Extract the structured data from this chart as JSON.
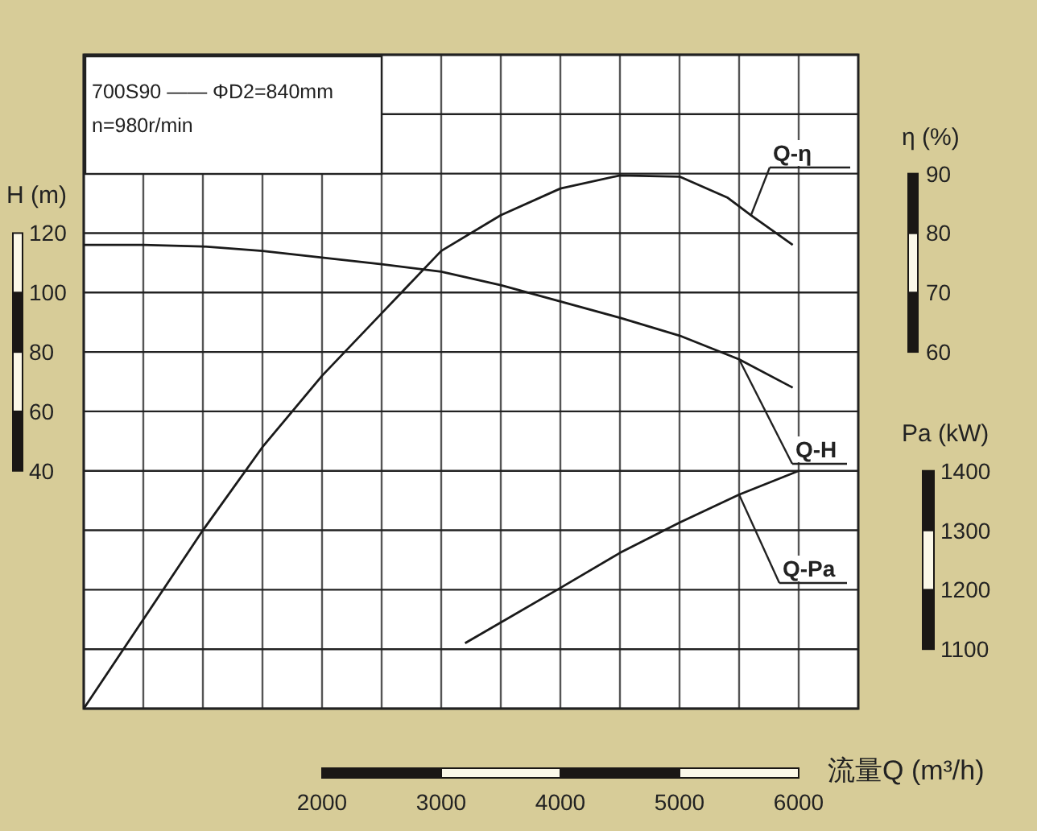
{
  "chart_data": {
    "type": "line",
    "annotations": [
      "700S90 —— ΦD2=840mm",
      "n=980r/min"
    ],
    "xlabel": "流量Q (m³/h)",
    "ylabel": "H (m)",
    "y2label": "η (%)",
    "y3label": "Pa (kW)",
    "xlim": [
      0,
      6500
    ],
    "xticks": [
      {
        "value": 0,
        "label": null
      },
      {
        "value": 500,
        "label": null
      },
      {
        "value": 1000,
        "label": null
      },
      {
        "value": 1500,
        "label": null
      },
      2000,
      {
        "value": 2500,
        "label": null
      },
      3000,
      {
        "value": 3500,
        "label": null
      },
      4000,
      {
        "value": 4500,
        "label": null
      },
      5000,
      {
        "value": 5500,
        "label": null
      },
      6000
    ],
    "ylim": [
      -40,
      180
    ],
    "yticks": [
      {
        "value": -40,
        "label": null
      },
      {
        "value": -20,
        "label": null
      },
      {
        "value": 0,
        "label": null
      },
      {
        "value": 20,
        "label": null
      },
      40,
      60,
      80,
      100,
      120,
      {
        "value": 140,
        "label": null
      },
      {
        "value": 160,
        "label": null
      },
      {
        "value": 180,
        "label": null
      }
    ],
    "y2lim": [
      0,
      110
    ],
    "y2ticks": [
      60,
      70,
      80,
      90
    ],
    "y3lim": [
      1000,
      2100
    ],
    "y3ticks": [
      1100,
      1200,
      1300,
      1400
    ],
    "grid": true,
    "line_style": "solid",
    "series": [
      {
        "name": "Q-η",
        "axis": "y2",
        "color": "#1a1a1a",
        "x": [
          0,
          500,
          1000,
          1500,
          2000,
          2500,
          3000,
          3500,
          4000,
          4500,
          5000,
          5400,
          5600,
          5950
        ],
        "values": [
          0,
          15,
          30,
          44,
          56,
          66.5,
          77,
          83,
          87.5,
          89.7,
          89.5,
          86,
          83,
          78
        ]
      },
      {
        "name": "Q-H",
        "axis": "y",
        "color": "#1a1a1a",
        "x": [
          0,
          500,
          1000,
          1500,
          2500,
          3000,
          3500,
          4000,
          4500,
          5000,
          5500,
          5950
        ],
        "values": [
          116,
          116,
          115.5,
          114,
          109.5,
          107,
          102.5,
          97,
          91.5,
          85.5,
          77.5,
          68
        ]
      },
      {
        "name": "Q-Pa",
        "axis": "y3",
        "color": "#1a1a1a",
        "x": [
          3200,
          4000,
          4500,
          5000,
          5500,
          6000
        ],
        "values": [
          1110,
          1203,
          1262,
          1313,
          1360,
          1400
        ]
      }
    ]
  }
}
